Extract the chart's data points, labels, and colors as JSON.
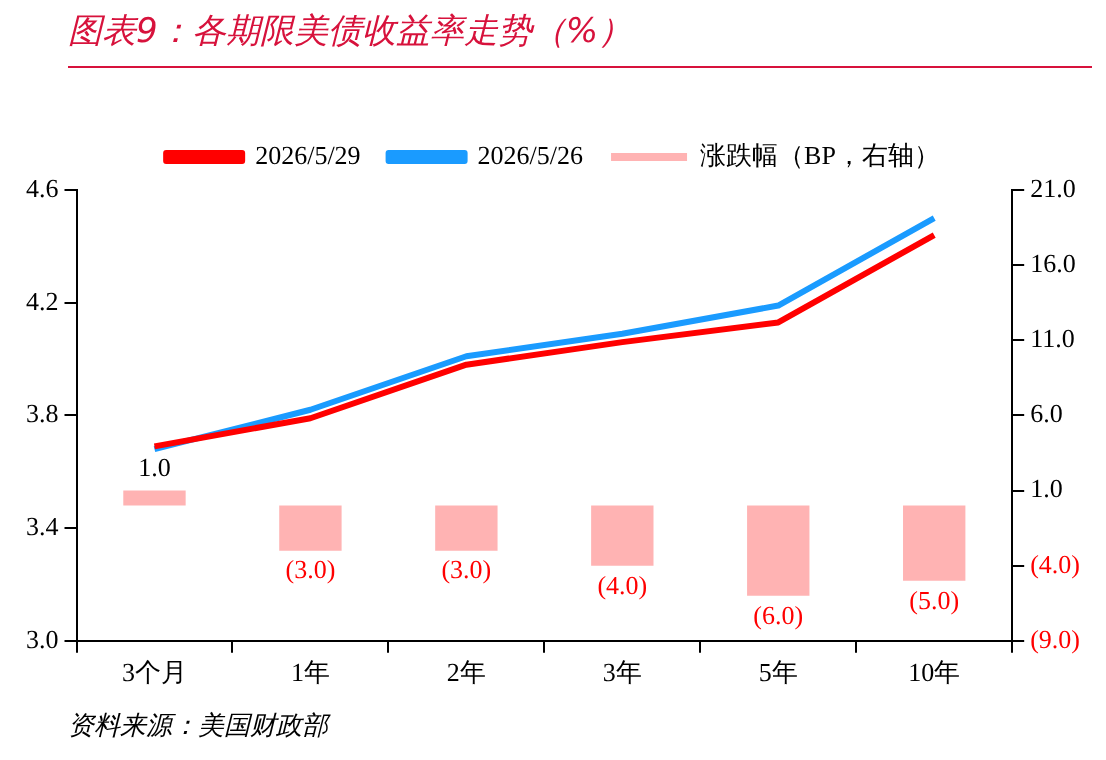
{
  "chart_data": {
    "type": "line",
    "title": "图表9：各期限美债收益率走势（%）",
    "categories": [
      "3个月",
      "1年",
      "2年",
      "3年",
      "5年",
      "10年"
    ],
    "series": [
      {
        "name": "涨跌幅（BP，右轴）",
        "type": "bar",
        "axis": "y2",
        "color": "#ffb3b3",
        "values": [
          1,
          -3,
          -3,
          -4,
          -6,
          -5
        ],
        "value_labels": [
          "1.0",
          "(3.0)",
          "(3.0)",
          "(4.0)",
          "(6.0)",
          "(5.0)"
        ]
      },
      {
        "name": "2026/5/29",
        "color": "#ff0000",
        "values": [
          3.69,
          3.79,
          3.98,
          4.06,
          4.13,
          4.44
        ]
      },
      {
        "name": "2026/5/26",
        "color": "#1a9bff",
        "values": [
          3.68,
          3.82,
          4.01,
          4.09,
          4.19,
          4.5
        ]
      }
    ],
    "ylim": [
      3.0,
      4.6
    ],
    "yticks": [
      {
        "value": 3.0,
        "label": "3.0"
      },
      {
        "value": 3.4,
        "label": "3.4"
      },
      {
        "value": 3.8,
        "label": "3.8"
      },
      {
        "value": 4.2,
        "label": "4.2"
      },
      {
        "value": 4.6,
        "label": "4.6"
      }
    ],
    "y2lim": [
      -9,
      21
    ],
    "y2ticks": [
      {
        "value": -9,
        "label": "(9.0)"
      },
      {
        "value": -4,
        "label": "(4.0)"
      },
      {
        "value": 1,
        "label": "1.0"
      },
      {
        "value": 6,
        "label": "6.0"
      },
      {
        "value": 11,
        "label": "11.0"
      },
      {
        "value": 16,
        "label": "16.0"
      },
      {
        "value": 21,
        "label": "21.0"
      }
    ],
    "grid": false,
    "legend": "top",
    "marker": "none",
    "line_style": "solid",
    "annotations": [
      "资料来源：美国财政部"
    ]
  }
}
